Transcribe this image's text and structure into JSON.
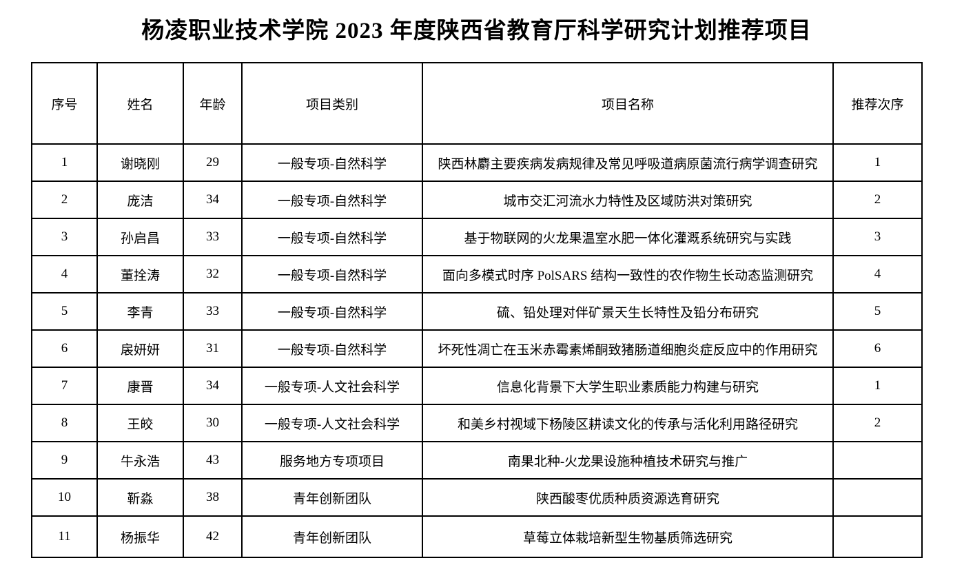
{
  "title": "杨凌职业技术学院 2023 年度陕西省教育厅科学研究计划推荐项目",
  "table": {
    "headers": [
      "序号",
      "姓名",
      "年龄",
      "项目类别",
      "项目名称",
      "推荐次序"
    ],
    "column_keys": [
      "index",
      "name",
      "age",
      "category",
      "project",
      "order"
    ],
    "rows": [
      [
        "1",
        "谢晓刚",
        "29",
        "一般专项-自然科学",
        "陕西林麝主要疾病发病规律及常见呼吸道病原菌流行病学调查研究",
        "1"
      ],
      [
        "2",
        "庞洁",
        "34",
        "一般专项-自然科学",
        "城市交汇河流水力特性及区域防洪对策研究",
        "2"
      ],
      [
        "3",
        "孙启昌",
        "33",
        "一般专项-自然科学",
        "基于物联网的火龙果温室水肥一体化灌溉系统研究与实践",
        "3"
      ],
      [
        "4",
        "董拴涛",
        "32",
        "一般专项-自然科学",
        "面向多模式时序 PolSARS 结构一致性的农作物生长动态监测研究",
        "4"
      ],
      [
        "5",
        "李青",
        "33",
        "一般专项-自然科学",
        "硫、铅处理对伴矿景天生长特性及铅分布研究",
        "5"
      ],
      [
        "6",
        "扆妍妍",
        "31",
        "一般专项-自然科学",
        "坏死性凋亡在玉米赤霉素烯酮致猪肠道细胞炎症反应中的作用研究",
        "6"
      ],
      [
        "7",
        "康晋",
        "34",
        "一般专项-人文社会科学",
        "信息化背景下大学生职业素质能力构建与研究",
        "1"
      ],
      [
        "8",
        "王皎",
        "30",
        "一般专项-人文社会科学",
        "和美乡村视域下杨陵区耕读文化的传承与活化利用路径研究",
        "2"
      ],
      [
        "9",
        "牛永浩",
        "43",
        "服务地方专项项目",
        "南果北种-火龙果设施种植技术研究与推广",
        ""
      ],
      [
        "10",
        "靳淼",
        "38",
        "青年创新团队",
        "陕西酸枣优质种质资源选育研究",
        ""
      ],
      [
        "11",
        "杨振华",
        "42",
        "青年创新团队",
        "草莓立体栽培新型生物基质筛选研究",
        ""
      ]
    ]
  }
}
